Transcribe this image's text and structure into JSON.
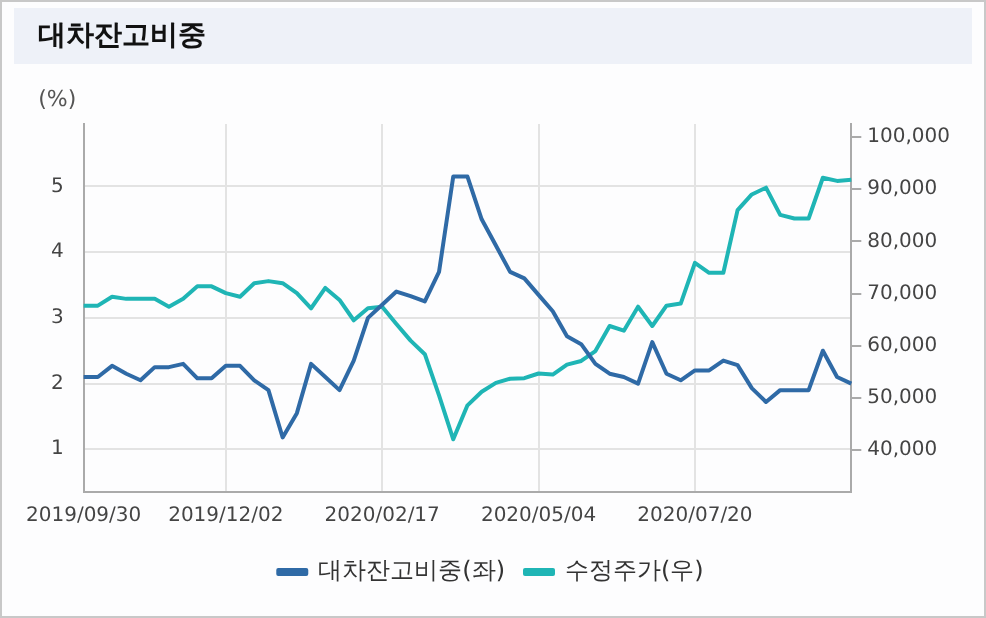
{
  "chart_data": {
    "type": "line",
    "title": "대차잔고비중",
    "ylabel": "(%)",
    "categories": [
      "2019/09/30",
      null,
      null,
      null,
      null,
      null,
      null,
      null,
      null,
      null,
      "2019/12/02",
      null,
      null,
      null,
      null,
      null,
      null,
      null,
      null,
      null,
      null,
      "2020/02/17",
      null,
      null,
      null,
      null,
      null,
      null,
      null,
      null,
      null,
      null,
      "2020/05/04",
      null,
      null,
      null,
      null,
      null,
      null,
      null,
      null,
      null,
      null,
      "2020/07/20",
      null,
      null,
      null,
      null,
      null,
      null,
      null,
      null,
      null,
      null,
      null
    ],
    "series": [
      {
        "name": "대차잔고비중(좌)",
        "color": "#2f6aa6",
        "values": [
          2.1,
          2.1,
          2.27,
          2.15,
          2.05,
          2.25,
          2.25,
          2.3,
          2.08,
          2.08,
          2.27,
          2.27,
          2.05,
          1.9,
          1.18,
          1.55,
          2.3,
          2.1,
          1.9,
          2.35,
          3.0,
          3.2,
          3.4,
          3.33,
          3.25,
          3.7,
          5.15,
          5.15,
          4.5,
          4.1,
          3.7,
          3.6,
          3.35,
          3.1,
          2.72,
          2.6,
          2.3,
          2.15,
          2.1,
          2.0,
          2.63,
          2.15,
          2.05,
          2.2,
          2.2,
          2.35,
          2.28,
          1.93,
          1.72,
          1.9,
          1.9,
          1.9,
          2.5,
          2.1,
          2.0
        ]
      },
      {
        "name": "수정주가(우)",
        "color": "#1fb5b5",
        "axis": "y2",
        "values": [
          67700,
          67700,
          69400,
          69000,
          69000,
          69000,
          67500,
          69000,
          71400,
          71400,
          70100,
          69400,
          72000,
          72400,
          72000,
          70100,
          67200,
          71100,
          68800,
          64900,
          67200,
          67500,
          64200,
          61000,
          58400,
          50500,
          42100,
          48600,
          51200,
          52900,
          53700,
          53800,
          54700,
          54500,
          56400,
          57100,
          59000,
          63800,
          62900,
          67500,
          63800,
          67700,
          68100,
          75900,
          74000,
          74000,
          86000,
          89000,
          90300,
          85100,
          84400,
          84400,
          92200,
          91600,
          91800
        ]
      }
    ],
    "ylim": [
      0.35,
      5.95
    ],
    "yticks": [
      1,
      2,
      3,
      4,
      5
    ],
    "y2lim": [
      32000,
      102500
    ],
    "y2ticks": [
      {
        "value": 40000,
        "label": "40,000"
      },
      {
        "value": 50000,
        "label": "50,000"
      },
      {
        "value": 60000,
        "label": "60,000"
      },
      {
        "value": 70000,
        "label": "70,000"
      },
      {
        "value": 80000,
        "label": "80,000"
      },
      {
        "value": 90000,
        "label": "90,000"
      },
      {
        "value": 100000,
        "label": "100,000"
      }
    ],
    "grid": true,
    "legend": "bottom",
    "marker": "none",
    "line_style": "solid"
  }
}
